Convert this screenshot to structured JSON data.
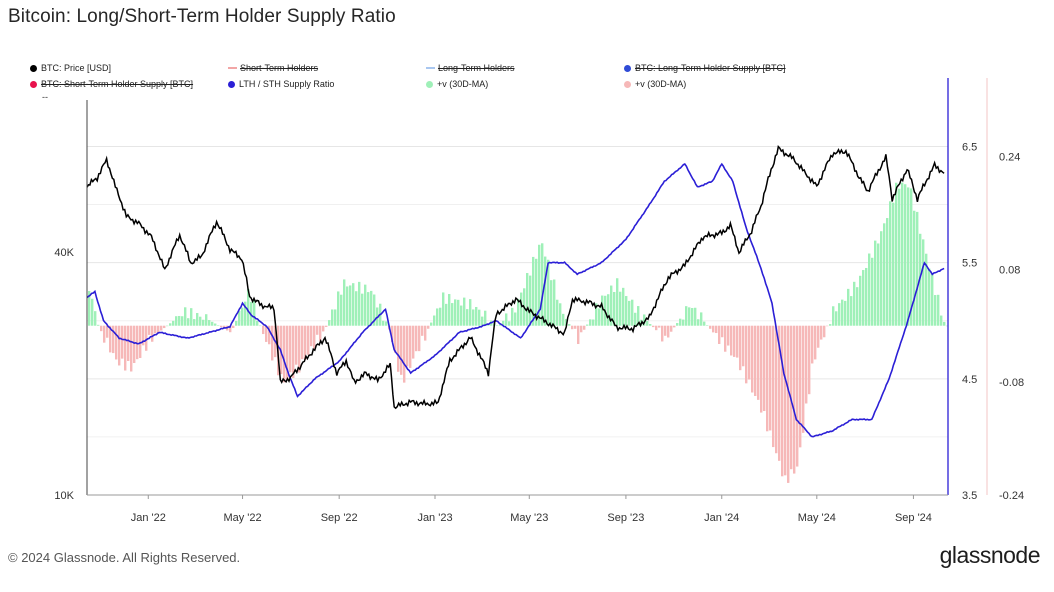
{
  "title": "Bitcoin: Long/Short-Term Holder Supply Ratio",
  "footer": {
    "copyright": "© 2024 Glassnode. All Rights Reserved.",
    "brand": "glassnode"
  },
  "legend": [
    {
      "label": "BTC: Price [USD]",
      "color": "#000000",
      "marker": "dot",
      "struck": false
    },
    {
      "label": "Short-Term Holders",
      "color": "#f2a6a6",
      "marker": "line",
      "struck": true
    },
    {
      "label": "Long-Term Holders",
      "color": "#a9c7f0",
      "marker": "line",
      "struck": true
    },
    {
      "label": "BTC: Long-Term Holder Supply [BTC]",
      "color": "#2f4bd6",
      "marker": "dot",
      "struck": true
    },
    {
      "label": "BTC: Short-Term Holder Supply [BTC]",
      "color": "#e8124d",
      "marker": "dot",
      "struck": true
    },
    {
      "label": "LTH / STH Supply Ratio",
      "color": "#2b1fd6",
      "marker": "dot",
      "struck": false
    },
    {
      "label": "+v (30D-MA)",
      "color": "#9ff0b8",
      "marker": "dot",
      "struck": false
    },
    {
      "label": "+v (30D-MA)",
      "color": "#f6b8b8",
      "marker": "dot",
      "struck": false
    }
  ],
  "legend_extra": "--",
  "chart_data": {
    "type": "line",
    "x_ticks": [
      "Jan '22",
      "May '22",
      "Sep '22",
      "Jan '23",
      "May '23",
      "Sep '23",
      "Jan '24",
      "May '24",
      "Sep '24"
    ],
    "x_range": [
      "2021-10-15",
      "2024-10-15"
    ],
    "price_axis": {
      "scale": "log",
      "ticks": [
        "40K",
        "10K"
      ],
      "range": [
        10000,
        95000
      ]
    },
    "ratio_axis": {
      "ticks": [
        "6.5",
        "5.5",
        "4.5",
        "3.5"
      ],
      "range": [
        3.5,
        6.9
      ]
    },
    "oscillator_axis": {
      "ticks": [
        "0.24",
        "0.08",
        "-0.08",
        "-0.24"
      ],
      "range": [
        -0.24,
        0.32
      ]
    },
    "colors": {
      "price": "#000000",
      "ratio": "#2b1fd6",
      "positive": "#9ff0b8",
      "negative": "#f6b8b8",
      "price_overlay_dark": "#0b3d1a"
    },
    "series": [
      {
        "name": "BTC: Price [USD]",
        "axis": "price",
        "points": [
          [
            "2021-10-15",
            58000
          ],
          [
            "2021-10-28",
            61000
          ],
          [
            "2021-11-09",
            67500
          ],
          [
            "2021-11-20",
            58000
          ],
          [
            "2021-12-04",
            49000
          ],
          [
            "2021-12-20",
            47000
          ],
          [
            "2022-01-05",
            43500
          ],
          [
            "2022-01-22",
            36000
          ],
          [
            "2022-02-10",
            44000
          ],
          [
            "2022-02-24",
            37500
          ],
          [
            "2022-03-10",
            39000
          ],
          [
            "2022-03-29",
            47500
          ],
          [
            "2022-04-15",
            40500
          ],
          [
            "2022-04-30",
            38500
          ],
          [
            "2022-05-10",
            31000
          ],
          [
            "2022-05-25",
            29500
          ],
          [
            "2022-06-10",
            29000
          ],
          [
            "2022-06-18",
            19000
          ],
          [
            "2022-07-01",
            19500
          ],
          [
            "2022-07-15",
            21000
          ],
          [
            "2022-08-01",
            23000
          ],
          [
            "2022-08-14",
            24500
          ],
          [
            "2022-08-29",
            20000
          ],
          [
            "2022-09-10",
            21500
          ],
          [
            "2022-09-20",
            19000
          ],
          [
            "2022-10-05",
            20000
          ],
          [
            "2022-10-20",
            19200
          ],
          [
            "2022-11-05",
            21000
          ],
          [
            "2022-11-10",
            16500
          ],
          [
            "2022-12-01",
            17000
          ],
          [
            "2022-12-20",
            16800
          ],
          [
            "2023-01-05",
            16900
          ],
          [
            "2023-01-20",
            21500
          ],
          [
            "2023-02-15",
            24500
          ],
          [
            "2023-03-10",
            20000
          ],
          [
            "2023-03-20",
            28000
          ],
          [
            "2023-04-14",
            30500
          ],
          [
            "2023-05-01",
            28500
          ],
          [
            "2023-05-20",
            27000
          ],
          [
            "2023-06-15",
            25000
          ],
          [
            "2023-06-25",
            30500
          ],
          [
            "2023-07-15",
            30000
          ],
          [
            "2023-08-01",
            29200
          ],
          [
            "2023-08-20",
            26000
          ],
          [
            "2023-09-10",
            25800
          ],
          [
            "2023-10-01",
            27500
          ],
          [
            "2023-10-25",
            34500
          ],
          [
            "2023-11-15",
            37000
          ],
          [
            "2023-12-08",
            43500
          ],
          [
            "2024-01-01",
            44500
          ],
          [
            "2024-01-12",
            46500
          ],
          [
            "2024-01-23",
            39800
          ],
          [
            "2024-02-08",
            45000
          ],
          [
            "2024-02-20",
            52000
          ],
          [
            "2024-03-13",
            72000
          ],
          [
            "2024-04-01",
            68000
          ],
          [
            "2024-04-15",
            63000
          ],
          [
            "2024-05-01",
            58000
          ],
          [
            "2024-05-21",
            70000
          ],
          [
            "2024-06-07",
            71000
          ],
          [
            "2024-06-24",
            61000
          ],
          [
            "2024-07-05",
            56500
          ],
          [
            "2024-07-28",
            68500
          ],
          [
            "2024-08-05",
            54000
          ],
          [
            "2024-08-24",
            64000
          ],
          [
            "2024-09-06",
            54000
          ],
          [
            "2024-09-28",
            65500
          ],
          [
            "2024-10-10",
            62500
          ]
        ]
      },
      {
        "name": "LTH / STH Supply Ratio",
        "axis": "ratio",
        "points": [
          [
            "2021-10-15",
            5.2
          ],
          [
            "2021-10-25",
            5.25
          ],
          [
            "2021-11-05",
            5.0
          ],
          [
            "2021-11-25",
            4.85
          ],
          [
            "2021-12-20",
            4.8
          ],
          [
            "2022-01-15",
            4.9
          ],
          [
            "2022-02-20",
            4.85
          ],
          [
            "2022-03-20",
            4.9
          ],
          [
            "2022-04-15",
            4.95
          ],
          [
            "2022-05-01",
            5.15
          ],
          [
            "2022-05-12",
            5.05
          ],
          [
            "2022-06-01",
            4.95
          ],
          [
            "2022-06-18",
            4.75
          ],
          [
            "2022-07-01",
            4.5
          ],
          [
            "2022-07-10",
            4.35
          ],
          [
            "2022-08-01",
            4.5
          ],
          [
            "2022-09-01",
            4.65
          ],
          [
            "2022-10-01",
            4.9
          ],
          [
            "2022-10-30",
            5.1
          ],
          [
            "2022-11-10",
            4.75
          ],
          [
            "2022-12-01",
            4.55
          ],
          [
            "2023-01-01",
            4.7
          ],
          [
            "2023-02-01",
            4.9
          ],
          [
            "2023-03-01",
            4.95
          ],
          [
            "2023-03-20",
            5.0
          ],
          [
            "2023-04-20",
            4.85
          ],
          [
            "2023-05-15",
            5.1
          ],
          [
            "2023-05-25",
            5.5
          ],
          [
            "2023-06-15",
            5.5
          ],
          [
            "2023-07-01",
            5.4
          ],
          [
            "2023-08-01",
            5.5
          ],
          [
            "2023-09-01",
            5.7
          ],
          [
            "2023-10-01",
            6.0
          ],
          [
            "2023-10-20",
            6.2
          ],
          [
            "2023-11-15",
            6.35
          ],
          [
            "2023-12-01",
            6.15
          ],
          [
            "2023-12-20",
            6.2
          ],
          [
            "2024-01-01",
            6.35
          ],
          [
            "2024-01-15",
            6.2
          ],
          [
            "2024-02-01",
            5.8
          ],
          [
            "2024-02-20",
            5.45
          ],
          [
            "2024-03-05",
            5.15
          ],
          [
            "2024-03-20",
            4.55
          ],
          [
            "2024-04-05",
            4.15
          ],
          [
            "2024-04-25",
            4.0
          ],
          [
            "2024-05-20",
            4.05
          ],
          [
            "2024-06-15",
            4.15
          ],
          [
            "2024-07-10",
            4.15
          ],
          [
            "2024-08-01",
            4.5
          ],
          [
            "2024-08-25",
            5.0
          ],
          [
            "2024-09-15",
            5.5
          ],
          [
            "2024-09-25",
            5.4
          ],
          [
            "2024-10-10",
            5.45
          ]
        ]
      },
      {
        "name": "+v (30D-MA)",
        "axis": "oscillator",
        "points": [
          [
            "2021-10-15",
            0.06
          ],
          [
            "2021-10-28",
            0.0
          ],
          [
            "2021-11-20",
            -0.05
          ],
          [
            "2021-12-10",
            -0.06
          ],
          [
            "2022-01-01",
            -0.02
          ],
          [
            "2022-02-15",
            0.02
          ],
          [
            "2022-03-15",
            0.01
          ],
          [
            "2022-04-15",
            -0.01
          ],
          [
            "2022-05-08",
            0.05
          ],
          [
            "2022-05-22",
            0.0
          ],
          [
            "2022-06-20",
            -0.08
          ],
          [
            "2022-07-10",
            -0.06
          ],
          [
            "2022-08-15",
            0.0
          ],
          [
            "2022-09-05",
            0.06
          ],
          [
            "2022-10-10",
            0.05
          ],
          [
            "2022-11-01",
            0.0
          ],
          [
            "2022-11-18",
            -0.08
          ],
          [
            "2022-12-15",
            -0.02
          ],
          [
            "2023-01-10",
            0.04
          ],
          [
            "2023-02-15",
            0.03
          ],
          [
            "2023-03-20",
            0.0
          ],
          [
            "2023-04-10",
            0.02
          ],
          [
            "2023-05-15",
            0.12
          ],
          [
            "2023-06-10",
            0.02
          ],
          [
            "2023-07-01",
            -0.02
          ],
          [
            "2023-08-01",
            0.04
          ],
          [
            "2023-08-20",
            0.06
          ],
          [
            "2023-09-15",
            0.02
          ],
          [
            "2023-10-20",
            -0.02
          ],
          [
            "2023-11-20",
            0.03
          ],
          [
            "2023-12-20",
            -0.01
          ],
          [
            "2024-01-20",
            -0.05
          ],
          [
            "2024-02-20",
            -0.12
          ],
          [
            "2024-03-20",
            -0.22
          ],
          [
            "2024-04-05",
            -0.2
          ],
          [
            "2024-04-25",
            -0.05
          ],
          [
            "2024-05-20",
            0.02
          ],
          [
            "2024-06-20",
            0.06
          ],
          [
            "2024-07-20",
            0.13
          ],
          [
            "2024-08-10",
            0.2
          ],
          [
            "2024-08-25",
            0.2
          ],
          [
            "2024-09-25",
            0.06
          ],
          [
            "2024-10-10",
            0.0
          ]
        ]
      }
    ]
  }
}
